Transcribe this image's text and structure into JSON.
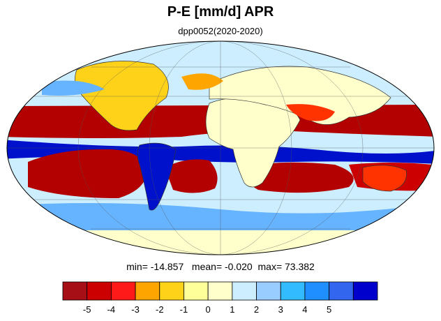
{
  "title": "P-E [mm/d] APR",
  "subtitle": "dpp0052(2020-2020)",
  "stats": {
    "min_label": "min=",
    "min": "-14.857",
    "mean_label": "mean=",
    "mean": "-0.020",
    "max_label": "max=",
    "max": "73.382"
  },
  "colorbar": {
    "colors": [
      "#a50f15",
      "#cc0000",
      "#ff1a1a",
      "#ffa500",
      "#ffd21a",
      "#ffff99",
      "#ffffcc",
      "#cceeff",
      "#99ccff",
      "#33bbff",
      "#1f8fff",
      "#3366ee",
      "#0000cc"
    ],
    "tick_labels": [
      "-5",
      "-4",
      "-3",
      "-2",
      "-1",
      "0",
      "1",
      "2",
      "3",
      "4",
      "5"
    ]
  },
  "map": {
    "projection": "mollweide",
    "palette": {
      "ocean_light": "#cceeff",
      "dry_strong": "#b30000",
      "dry": "#ff3300",
      "dry_mild": "#ffcc33",
      "neutral": "#ffffcc",
      "wet_mild": "#66b3ff",
      "wet_strong": "#0011cc"
    }
  }
}
